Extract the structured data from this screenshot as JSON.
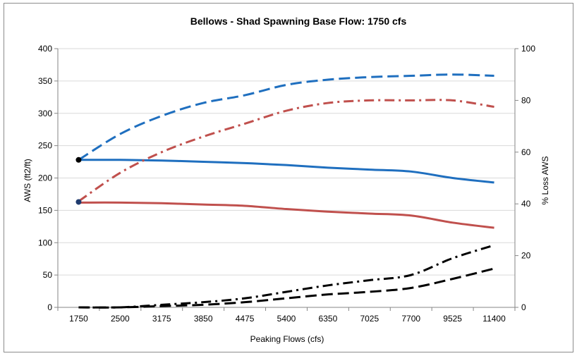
{
  "chart_data": {
    "type": "line",
    "title": "Bellows -  Shad Spawning   Base Flow: 1750 cfs",
    "xlabel": "Peaking Flows (cfs)",
    "ylabel": "AWS (ft2/ft)",
    "y2label": "% Loss AWS",
    "categories": [
      "1750",
      "2500",
      "3175",
      "3850",
      "4475",
      "5400",
      "6350",
      "7025",
      "7700",
      "9525",
      "11400"
    ],
    "ylim": [
      0,
      400
    ],
    "yticks": [
      0,
      50,
      100,
      150,
      200,
      250,
      300,
      350,
      400
    ],
    "y2lim": [
      0,
      100
    ],
    "y2ticks": [
      0,
      20,
      40,
      60,
      80,
      100
    ],
    "grid": true,
    "legend": "none",
    "series": [
      {
        "axis": "left",
        "color": "#1f6fbf",
        "style": "solid",
        "values": [
          228,
          228,
          227,
          225,
          223,
          220,
          216,
          213,
          210,
          200,
          193
        ]
      },
      {
        "axis": "left",
        "color": "#c0504d",
        "style": "solid",
        "values": [
          162,
          162,
          161,
          159,
          157,
          152,
          148,
          145,
          142,
          131,
          123
        ]
      },
      {
        "axis": "right",
        "color": "#1f6fbf",
        "style": "dash",
        "values": [
          57,
          67,
          74,
          79,
          82,
          86,
          88,
          89,
          89.5,
          90,
          89.5
        ]
      },
      {
        "axis": "right",
        "color": "#c0504d",
        "style": "dashdot",
        "values": [
          41,
          52,
          60,
          66,
          71,
          76,
          79,
          80,
          80,
          80,
          77.5
        ]
      },
      {
        "axis": "right",
        "color": "#000000",
        "style": "dashdot",
        "values": [
          0,
          0,
          1,
          2,
          3.5,
          6,
          8.5,
          10.5,
          12.5,
          19,
          24
        ]
      },
      {
        "axis": "right",
        "color": "#000000",
        "style": "dash",
        "values": [
          0,
          0,
          0.5,
          1,
          2,
          3.5,
          5,
          6,
          7.5,
          11,
          15
        ]
      }
    ],
    "markers": [
      {
        "category": "1750",
        "value": 228,
        "axis": "left",
        "color": "#000000"
      },
      {
        "category": "1750",
        "value": 163,
        "axis": "left",
        "color": "#1f3b6e"
      }
    ]
  }
}
